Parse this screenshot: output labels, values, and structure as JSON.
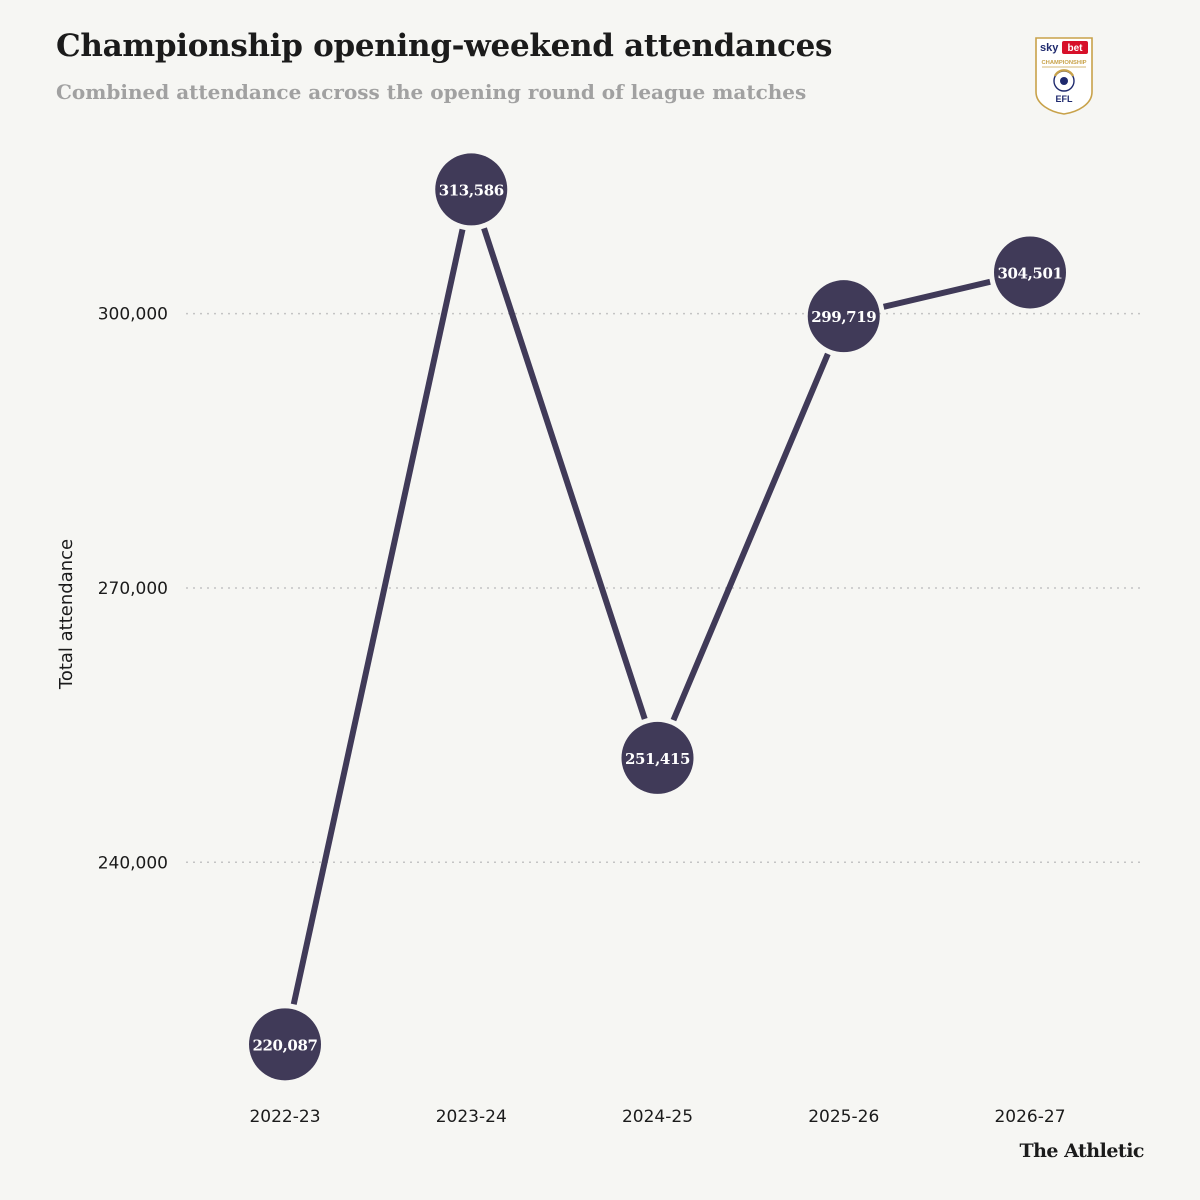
{
  "header": {
    "title": "Championship opening-weekend attendances",
    "subtitle": "Combined attendance across the opening round of league matches"
  },
  "logo": {
    "icon": "efl-championship-logo",
    "sponsor_sky": "sky",
    "sponsor_bet": "bet",
    "competition": "CHAMPIONSHIP",
    "league": "EFL"
  },
  "footer": {
    "brand": "The Athletic"
  },
  "colors": {
    "line": "#403a58",
    "marker": "#403a58",
    "marker_text": "#ffffff",
    "gridline": "#c4c4c4",
    "axis_text": "#1b1b1b",
    "background": "#f6f6f3",
    "logo_red": "#d7102a",
    "logo_navy": "#1f2a6e",
    "logo_gold": "#c8a24a"
  },
  "chart_data": {
    "type": "line",
    "ylabel": "Total attendance",
    "xlabel": "",
    "categories": [
      "2022-23",
      "2023-24",
      "2024-25",
      "2025-26",
      "2026-27"
    ],
    "values": [
      220087,
      313586,
      251415,
      299719,
      304501
    ],
    "data_labels": [
      "220,087",
      "313,586",
      "251,415",
      "299,719",
      "304,501"
    ],
    "yticks": [
      240000,
      270000,
      300000
    ],
    "ytick_labels": [
      "240,000",
      "270,000",
      "300,000"
    ],
    "ylim": [
      221000,
      313300
    ],
    "grid": true,
    "legend": "none"
  }
}
